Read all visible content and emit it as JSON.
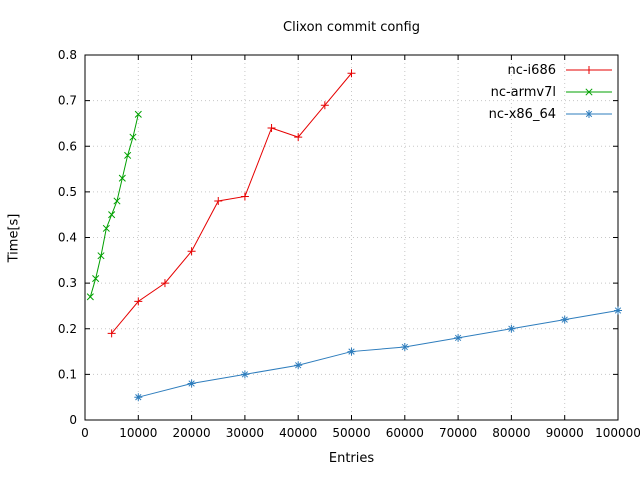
{
  "chart_data": {
    "type": "line",
    "title": "Clixon commit config",
    "xlabel": "Entries",
    "ylabel": "Time[s]",
    "xlim": [
      0,
      100000
    ],
    "ylim": [
      0,
      0.8
    ],
    "xticks": [
      0,
      10000,
      20000,
      30000,
      40000,
      50000,
      60000,
      70000,
      80000,
      90000,
      100000
    ],
    "xtick_labels": [
      "0",
      "10000",
      "20000",
      "30000",
      "40000",
      "50000",
      "60000",
      "70000",
      "80000",
      "90000",
      "100000"
    ],
    "yticks": [
      0,
      0.1,
      0.2,
      0.3,
      0.4,
      0.5,
      0.6,
      0.7,
      0.8
    ],
    "ytick_labels": [
      "0",
      "0.1",
      "0.2",
      "0.3",
      "0.4",
      "0.5",
      "0.6",
      "0.7",
      "0.8"
    ],
    "grid": true,
    "legend_position": "top-right",
    "colors": {
      "grid": "#c8c8c8",
      "border": "#000000",
      "series1": "#e60000",
      "series2": "#00a000",
      "series3": "#2e7dbd"
    },
    "series": [
      {
        "name": "nc-i686",
        "color": "#e60000",
        "marker": "plus",
        "x": [
          5000,
          10000,
          15000,
          20000,
          25000,
          30000,
          35000,
          40000,
          45000,
          50000
        ],
        "y": [
          0.19,
          0.26,
          0.3,
          0.37,
          0.48,
          0.49,
          0.64,
          0.62,
          0.69,
          0.76
        ]
      },
      {
        "name": "nc-armv7l",
        "color": "#00a000",
        "marker": "cross",
        "x": [
          1000,
          2000,
          3000,
          4000,
          5000,
          6000,
          7000,
          8000,
          9000,
          10000
        ],
        "y": [
          0.27,
          0.31,
          0.36,
          0.42,
          0.45,
          0.48,
          0.53,
          0.58,
          0.62,
          0.67
        ]
      },
      {
        "name": "nc-x86_64",
        "color": "#2e7dbd",
        "marker": "asterisk",
        "x": [
          10000,
          20000,
          30000,
          40000,
          50000,
          60000,
          70000,
          80000,
          90000,
          100000
        ],
        "y": [
          0.05,
          0.08,
          0.1,
          0.12,
          0.15,
          0.16,
          0.18,
          0.2,
          0.22,
          0.24
        ]
      }
    ]
  }
}
